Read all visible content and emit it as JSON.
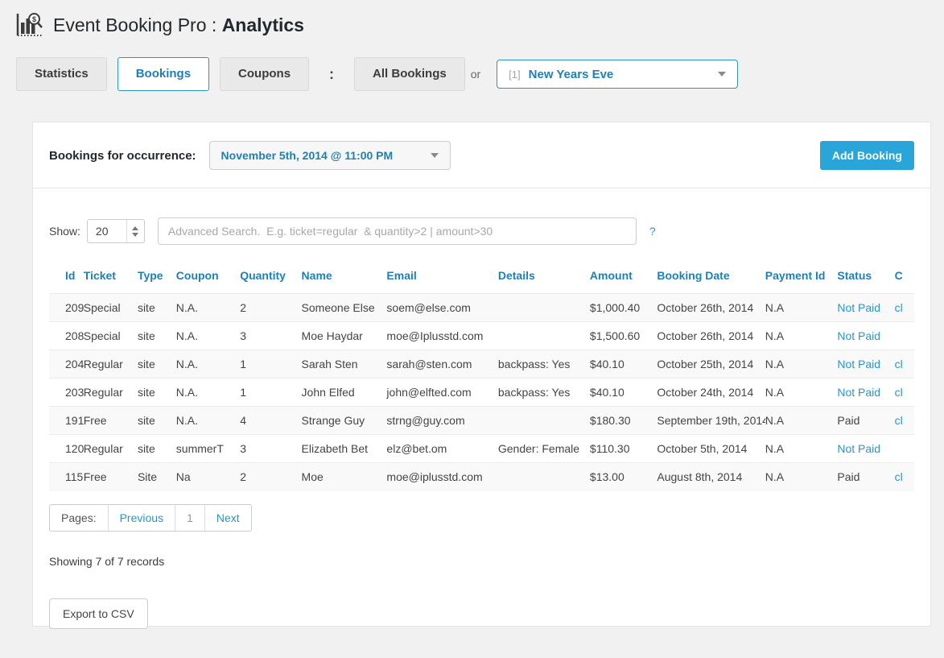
{
  "header": {
    "title_prefix": "Event Booking Pro : ",
    "title_emphasis": "Analytics",
    "icon": "analytics-magnifier-icon"
  },
  "toolbar": {
    "tabs": [
      {
        "label": "Statistics",
        "active": false
      },
      {
        "label": "Bookings",
        "active": true
      },
      {
        "label": "Coupons",
        "active": false
      }
    ],
    "separator": ":",
    "all_bookings_label": "All Bookings",
    "or_label": "or",
    "event_select": {
      "prefix": "[1]",
      "value": "New Years Eve"
    }
  },
  "panel": {
    "occurrence_label": "Bookings for occurrence:",
    "occurrence_value": "November 5th, 2014 @ 11:00 PM",
    "add_booking_label": "Add Booking",
    "show_label": "Show:",
    "show_value": "20",
    "search_placeholder": "Advanced Search.  E.g. ticket=regular  & quantity>2 | amount>30",
    "help_label": "?",
    "table": {
      "columns": [
        "Id",
        "Ticket",
        "Type",
        "Coupon",
        "Quantity",
        "Name",
        "Email",
        "Details",
        "Amount",
        "Booking Date",
        "Payment Id",
        "Status",
        "C"
      ],
      "rows": [
        {
          "id": "209",
          "ticket": "Special",
          "type": "site",
          "coupon": "N.A.",
          "quantity": "2",
          "name": "Someone Else",
          "email": "soem@else.com",
          "details": "",
          "amount": "$1,000.40",
          "booking_date": "October 26th, 2014",
          "payment_id": "N.A",
          "status": "Not Paid",
          "status_link": true,
          "change": "cl"
        },
        {
          "id": "208",
          "ticket": "Special",
          "type": "site",
          "coupon": "N.A.",
          "quantity": "3",
          "name": "Moe Haydar",
          "email": "moe@Iplusstd.com",
          "details": "",
          "amount": "$1,500.60",
          "booking_date": "October 26th, 2014",
          "payment_id": "N.A",
          "status": "Not Paid",
          "status_link": true,
          "change": ""
        },
        {
          "id": "204",
          "ticket": "Regular",
          "type": "site",
          "coupon": "N.A.",
          "quantity": "1",
          "name": "Sarah Sten",
          "email": "sarah@sten.com",
          "details": "backpass: Yes",
          "amount": "$40.10",
          "booking_date": "October 25th, 2014",
          "payment_id": "N.A",
          "status": "Not Paid",
          "status_link": true,
          "change": "cl"
        },
        {
          "id": "203",
          "ticket": "Regular",
          "type": "site",
          "coupon": "N.A.",
          "quantity": "1",
          "name": "John Elfed",
          "email": "john@elfted.com",
          "details": "backpass: Yes",
          "amount": "$40.10",
          "booking_date": "October 24th, 2014",
          "payment_id": "N.A",
          "status": "Not Paid",
          "status_link": true,
          "change": "cl"
        },
        {
          "id": "191",
          "ticket": "Free",
          "type": "site",
          "coupon": "N.A.",
          "quantity": "4",
          "name": "Strange Guy",
          "email": "strng@guy.com",
          "details": "",
          "amount": "$180.30",
          "booking_date": "September 19th, 2014",
          "payment_id": "N.A",
          "status": "Paid",
          "status_link": false,
          "change": "cl"
        },
        {
          "id": "120",
          "ticket": "Regular",
          "type": "site",
          "coupon": "summerT",
          "quantity": "3",
          "name": "Elizabeth Bet",
          "email": "elz@bet.om",
          "details": "Gender: Female",
          "amount": "$110.30",
          "booking_date": "October 5th, 2014",
          "payment_id": "N.A",
          "status": "Not Paid",
          "status_link": true,
          "change": ""
        },
        {
          "id": "115",
          "ticket": "Free",
          "type": "Site",
          "coupon": "Na",
          "quantity": "2",
          "name": "Moe",
          "email": "moe@iplusstd.com",
          "details": "",
          "amount": "$13.00",
          "booking_date": "August 8th, 2014",
          "payment_id": "N.A",
          "status": "Paid",
          "status_link": false,
          "change": "cl"
        }
      ]
    },
    "pagination": {
      "pages_label": "Pages:",
      "previous_label": "Previous",
      "page_number": "1",
      "next_label": "Next"
    },
    "records_summary": "Showing 7 of 7 records",
    "export_label": "Export to CSV"
  },
  "colors": {
    "accent_blue": "#29a5d9",
    "link_blue": "#2a95c5",
    "header_blue": "#1f7fb5",
    "page_bg": "#f1f1f1",
    "panel_bg": "#ffffff",
    "row_alt_bg": "#f9f9f9"
  }
}
